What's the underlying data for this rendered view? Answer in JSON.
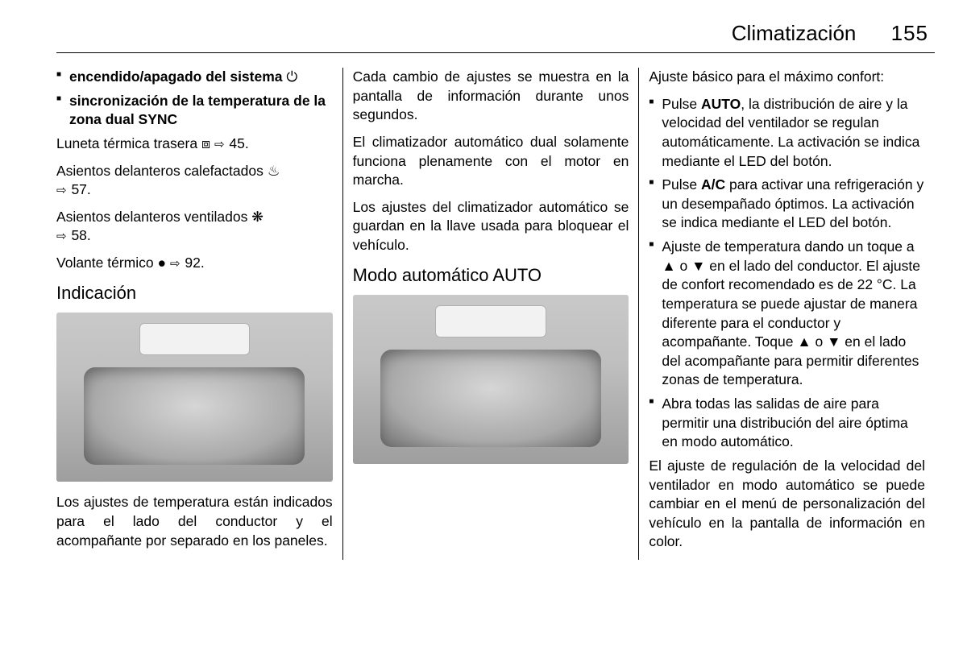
{
  "header": {
    "chapter": "Climatización",
    "page_number": "155"
  },
  "col1": {
    "bullets": [
      {
        "text": "encendido/apagado del sistema",
        "icon": "⏻"
      },
      {
        "text": "sincronización de la temperatura de la zona dual SYNC",
        "icon": ""
      }
    ],
    "refs": [
      {
        "pre": "Luneta térmica trasera ",
        "icon": "⧈",
        "page": " 45."
      },
      {
        "pre": "Asientos delanteros calefactados ",
        "icon": "♨",
        "page": " 57."
      },
      {
        "pre": "Asientos delanteros ventilados ",
        "icon": "❋",
        "page": " 58."
      },
      {
        "pre": "Volante térmico ",
        "icon": "●",
        "page": " 92."
      }
    ],
    "h2": "Indicación",
    "img1": {
      "knob_seg_colors": {
        "left_top": "#d08a1f",
        "left_bot": "#2e5fb0",
        "right_top": "#d08a1f",
        "right_bot": "#2e5fb0"
      },
      "btn_colors": {
        "l": "#000000",
        "r": "#000000"
      }
    },
    "after_img": "Los ajustes de temperatura están indicados para el lado del conductor y el acompañante por separado en los paneles."
  },
  "col2": {
    "p1": "Cada cambio de ajustes se muestra en la pantalla de información durante unos segundos.",
    "p2": "El climatizador automático dual solamente funciona plenamente con el motor en marcha.",
    "p3": "Los ajustes del climatizador automático se guardan en la llave usada para bloquear el vehículo.",
    "h2": "Modo automático AUTO",
    "img2": {
      "knob_seg_colors": {
        "left_top": "#d08a1f",
        "left_bot": "#2e5fb0",
        "right_top": "#d08a1f",
        "right_bot": "#2e5fb0"
      },
      "btn_colors": {
        "l": "#e0a020",
        "r": "#e0a020"
      }
    }
  },
  "col3": {
    "intro": "Ajuste básico para el máximo confort:",
    "bullets": [
      "Pulse <b>AUTO</b>, la distribución de aire y la velocidad del ventilador se regulan automáticamente. La activación se indica mediante el LED del botón.",
      "Pulse <b>A/C</b> para activar una refrigeración y un desempañado óptimos. La activación se indica mediante el LED del botón.",
      "Ajuste de temperatura dando un toque a ▲ o ▼ en el lado del conductor. El ajuste de confort recomendado es de 22 °C. La temperatura se puede ajustar de manera diferente para el conductor y acompañante. Toque ▲ o ▼ en el lado del acompañante para permitir diferentes zonas de temperatura.",
      "Abra todas las salidas de aire para permitir una distribución del aire óptima en modo automático."
    ],
    "outro": "El ajuste de regulación de la velocidad del ventilador en modo automático se puede cambiar en el menú de personalización del vehículo en la pantalla de información en color."
  },
  "styling": {
    "background_color": "#ffffff",
    "text_color": "#000000",
    "rule_color": "#000000",
    "body_fontsize_pt": 13,
    "header_fontsize_pt": 20,
    "h2_fontsize_pt": 17,
    "figure_width_pct": 100,
    "columns": 3
  }
}
